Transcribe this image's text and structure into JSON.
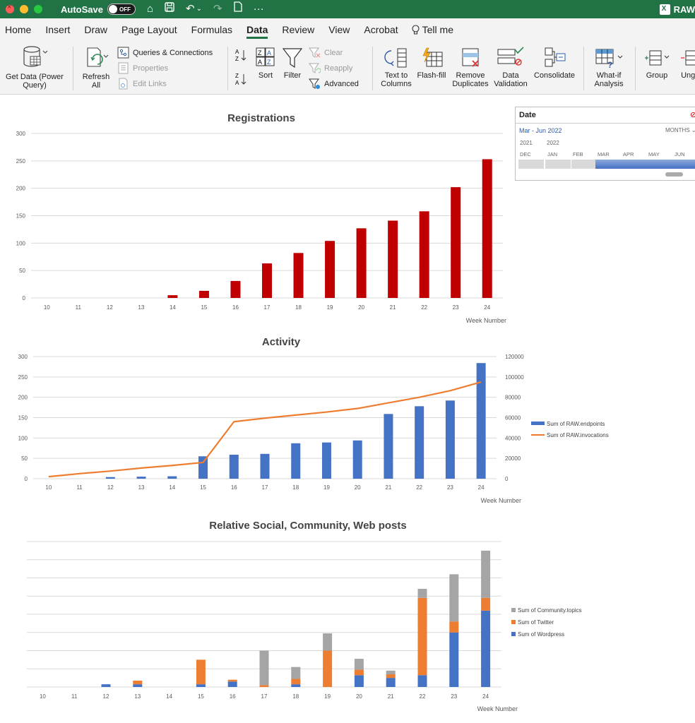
{
  "titlebar": {
    "autosave_label": "AutoSave",
    "toggle_label": "OFF",
    "filename": "RAW",
    "colors": {
      "bar": "#217346"
    }
  },
  "tabs": [
    "Home",
    "Insert",
    "Draw",
    "Page Layout",
    "Formulas",
    "Data",
    "Review",
    "View",
    "Acrobat"
  ],
  "active_tab": "Data",
  "tell_me": "Tell me",
  "ribbon": {
    "get_data": [
      "Get Data (Power",
      "Query)"
    ],
    "refresh_all": [
      "Refresh",
      "All"
    ],
    "queries_connections": "Queries & Connections",
    "properties": "Properties",
    "edit_links": "Edit Links",
    "sort": "Sort",
    "filter": "Filter",
    "clear": "Clear",
    "reapply": "Reapply",
    "advanced": "Advanced",
    "text_to_columns": [
      "Text to",
      "Columns"
    ],
    "flash_fill": "Flash-fill",
    "remove_duplicates": [
      "Remove",
      "Duplicates"
    ],
    "data_validation": [
      "Data",
      "Validation"
    ],
    "consolidate": "Consolidate",
    "what_if": [
      "What-if",
      "Analysis"
    ],
    "group": "Group",
    "ungroup": "Ungr"
  },
  "slicer": {
    "header": "Date",
    "range": "Mar - Jun 2022",
    "level": "MONTHS",
    "years": [
      "2021",
      "2022"
    ],
    "months": [
      "DEC",
      "JAN",
      "FEB",
      "MAR",
      "APR",
      "MAY",
      "JUN"
    ],
    "selected_months": [
      "MAR",
      "APR",
      "MAY",
      "JUN"
    ]
  },
  "chart_data": [
    {
      "type": "bar",
      "title": "Registrations",
      "xlabel": "Week Number",
      "ylabel": "",
      "ylim": [
        0,
        300
      ],
      "yticks": [
        0,
        50,
        100,
        150,
        200,
        250,
        300
      ],
      "categories": [
        "10",
        "11",
        "12",
        "13",
        "14",
        "15",
        "16",
        "17",
        "18",
        "19",
        "20",
        "21",
        "22",
        "23",
        "24"
      ],
      "values": [
        0,
        0,
        0,
        0,
        5,
        13,
        31,
        63,
        82,
        104,
        127,
        141,
        158,
        202,
        253
      ],
      "colors": [
        "#c00000"
      ],
      "grid": true
    },
    {
      "type": "bar",
      "title": "Activity",
      "xlabel": "Week Number",
      "ylim": [
        0,
        300
      ],
      "yticks": [
        0,
        50,
        100,
        150,
        200,
        250,
        300
      ],
      "y2lim": [
        0,
        120000
      ],
      "y2ticks": [
        0,
        20000,
        40000,
        60000,
        80000,
        100000,
        120000
      ],
      "categories": [
        "10",
        "11",
        "12",
        "13",
        "14",
        "15",
        "16",
        "17",
        "18",
        "19",
        "20",
        "21",
        "22",
        "23",
        "24"
      ],
      "series": [
        {
          "name": "Sum of RAW.endpoints",
          "type": "bar",
          "axis": "left",
          "color": "#4472c4",
          "values": [
            0,
            0,
            4,
            5,
            6,
            55,
            59,
            61,
            87,
            89,
            94,
            159,
            178,
            192,
            284
          ]
        },
        {
          "name": "Sum of RAW.invocations",
          "type": "line",
          "axis": "right",
          "color": "#ed7d31",
          "values": [
            2000,
            5000,
            7500,
            10500,
            13000,
            16000,
            56000,
            59500,
            62500,
            65500,
            69000,
            74500,
            80000,
            86500,
            95000
          ]
        }
      ],
      "legend": "right",
      "grid": true
    },
    {
      "type": "bar",
      "stacked": true,
      "title": "Relative Social, Community, Web posts",
      "xlabel": "Week Number",
      "categories": [
        "10",
        "11",
        "12",
        "13",
        "14",
        "15",
        "16",
        "17",
        "18",
        "19",
        "20",
        "21",
        "22",
        "23",
        "24"
      ],
      "ylim": [
        0,
        8
      ],
      "series": [
        {
          "name": "Sum of Wordpress",
          "color": "#4472c4",
          "values": [
            0,
            0,
            0.15,
            0.15,
            0,
            0.15,
            0.3,
            0,
            0.15,
            0,
            0.65,
            0.5,
            0.65,
            3.0,
            4.2
          ]
        },
        {
          "name": "Sum of Twitter",
          "color": "#ed7d31",
          "values": [
            0,
            0,
            0,
            0.2,
            0,
            1.35,
            0.1,
            0.1,
            0.3,
            2.0,
            0.3,
            0.2,
            4.25,
            0.6,
            0.7
          ]
        },
        {
          "name": "Sum of Community.topics",
          "color": "#a5a5a5",
          "values": [
            0,
            0,
            0,
            0,
            0,
            0,
            0,
            1.9,
            0.65,
            0.95,
            0.6,
            0.2,
            0.5,
            2.6,
            2.6
          ]
        }
      ],
      "legend": "right",
      "grid": true
    }
  ]
}
